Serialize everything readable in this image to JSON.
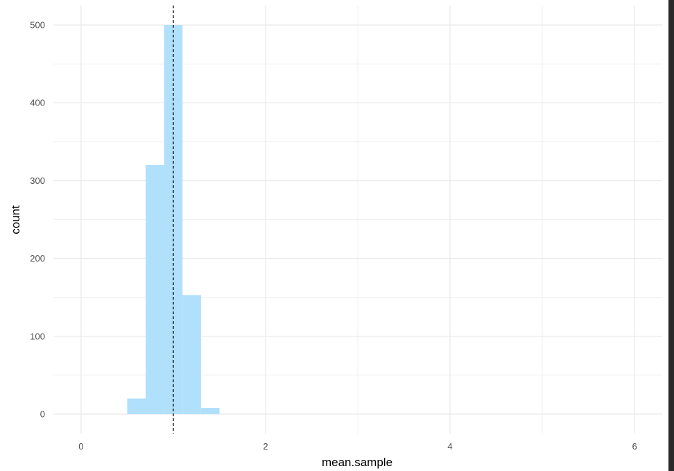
{
  "chart_data": {
    "type": "bar",
    "xlabel": "mean.sample",
    "ylabel": "count",
    "xlim": [
      -0.3,
      6.3
    ],
    "ylim": [
      -25,
      525
    ],
    "x_ticks": [
      0,
      2,
      4,
      6
    ],
    "x_minor_ticks": [
      1,
      3,
      5
    ],
    "y_ticks": [
      0,
      100,
      200,
      300,
      400,
      500
    ],
    "y_minor_ticks": [
      50,
      150,
      250,
      350,
      450
    ],
    "bin_width": 0.2,
    "bins": [
      {
        "x_start": 0.5,
        "x_end": 0.7,
        "count": 20
      },
      {
        "x_start": 0.7,
        "x_end": 0.9,
        "count": 320
      },
      {
        "x_start": 0.9,
        "x_end": 1.1,
        "count": 500
      },
      {
        "x_start": 1.1,
        "x_end": 1.3,
        "count": 153
      },
      {
        "x_start": 1.3,
        "x_end": 1.5,
        "count": 8
      }
    ],
    "reference_line": {
      "x": 1.0,
      "style": "dashed",
      "color": "#000000"
    },
    "bar_color": "#b0e0fc",
    "grid": true,
    "grid_color": "#ebebeb",
    "legend": "none"
  }
}
